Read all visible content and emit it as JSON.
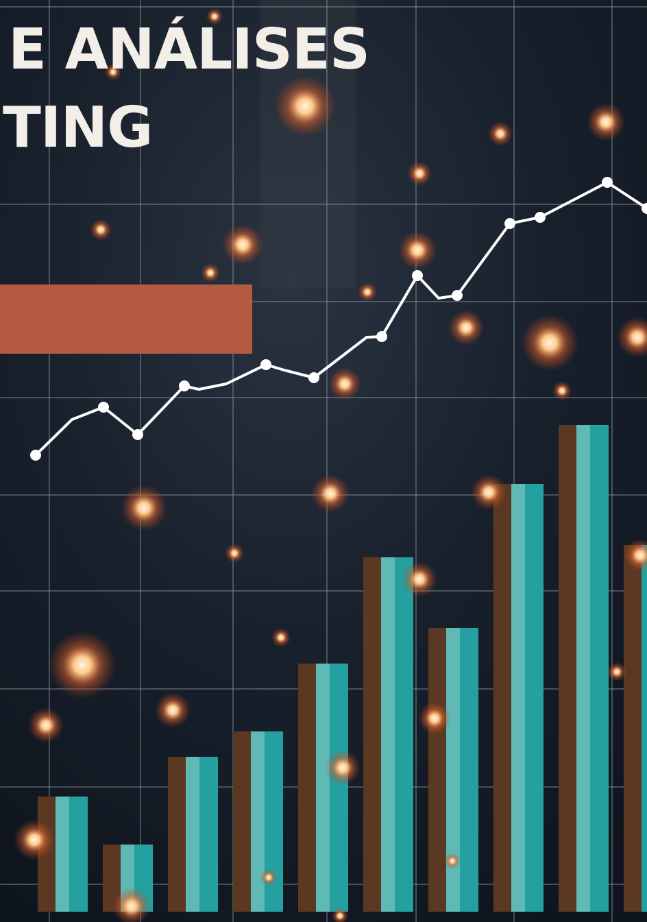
{
  "title": {
    "lines": [
      "E ANÁLISES",
      "TING"
    ]
  }
}
